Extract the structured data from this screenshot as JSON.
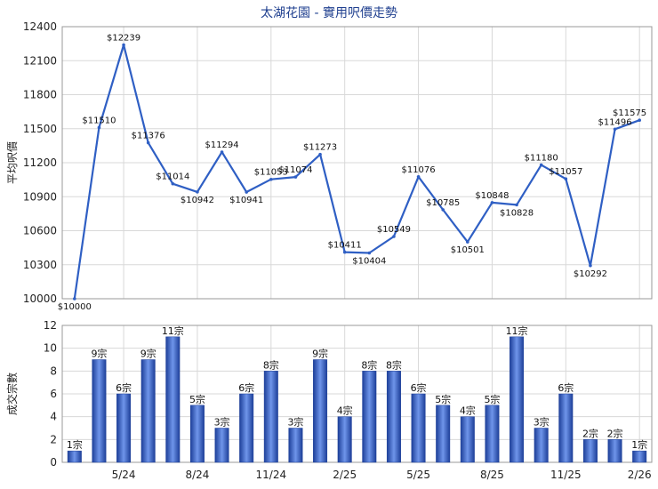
{
  "title": "太湖花園 - 實用呎價走勢",
  "chart_data": [
    {
      "type": "line",
      "ylabel": "平均呎價",
      "ylim": [
        10000,
        12400
      ],
      "yticks": [
        10000,
        10300,
        10600,
        10900,
        11200,
        11500,
        11800,
        12100,
        12400
      ],
      "grid": true,
      "color": "#2f5fc4",
      "values": [
        10000,
        11510,
        12239,
        11376,
        11014,
        10942,
        11294,
        10941,
        11053,
        11074,
        11273,
        10411,
        10404,
        10549,
        11076,
        10785,
        10501,
        10848,
        10828,
        11180,
        11057,
        10292,
        11496,
        11575
      ],
      "labels": [
        "$10000",
        "$11510",
        "$12239",
        "$11376",
        "$11014",
        "$10942",
        "$11294",
        "$10941",
        "$11053",
        "$11074",
        "$11273",
        "$10411",
        "$10404",
        "$10549",
        "$11076",
        "$10785",
        "$10501",
        "$10848",
        "$10828",
        "$11180",
        "$11057",
        "$10292",
        "$11496",
        "$11575"
      ]
    },
    {
      "type": "bar",
      "ylabel": "成交宗數",
      "ylim": [
        0,
        12
      ],
      "yticks": [
        0,
        2,
        4,
        6,
        8,
        10,
        12
      ],
      "grid": true,
      "color": "#3a66cc",
      "values": [
        1,
        9,
        6,
        9,
        11,
        5,
        3,
        6,
        8,
        3,
        9,
        4,
        8,
        8,
        6,
        5,
        4,
        5,
        11,
        3,
        6,
        2,
        2,
        1
      ],
      "labels": [
        "1宗",
        "9宗",
        "6宗",
        "9宗",
        "11宗",
        "5宗",
        "3宗",
        "6宗",
        "8宗",
        "3宗",
        "9宗",
        "4宗",
        "8宗",
        "8宗",
        "6宗",
        "5宗",
        "4宗",
        "5宗",
        "11宗",
        "3宗",
        "6宗",
        "2宗",
        "2宗",
        "1宗"
      ],
      "xticks": [
        {
          "index": 2,
          "label": "5/24"
        },
        {
          "index": 5,
          "label": "8/24"
        },
        {
          "index": 8,
          "label": "11/24"
        },
        {
          "index": 11,
          "label": "2/25"
        },
        {
          "index": 14,
          "label": "5/25"
        },
        {
          "index": 17,
          "label": "8/25"
        },
        {
          "index": 20,
          "label": "11/25"
        },
        {
          "index": 23,
          "label": "2/26"
        }
      ]
    }
  ]
}
